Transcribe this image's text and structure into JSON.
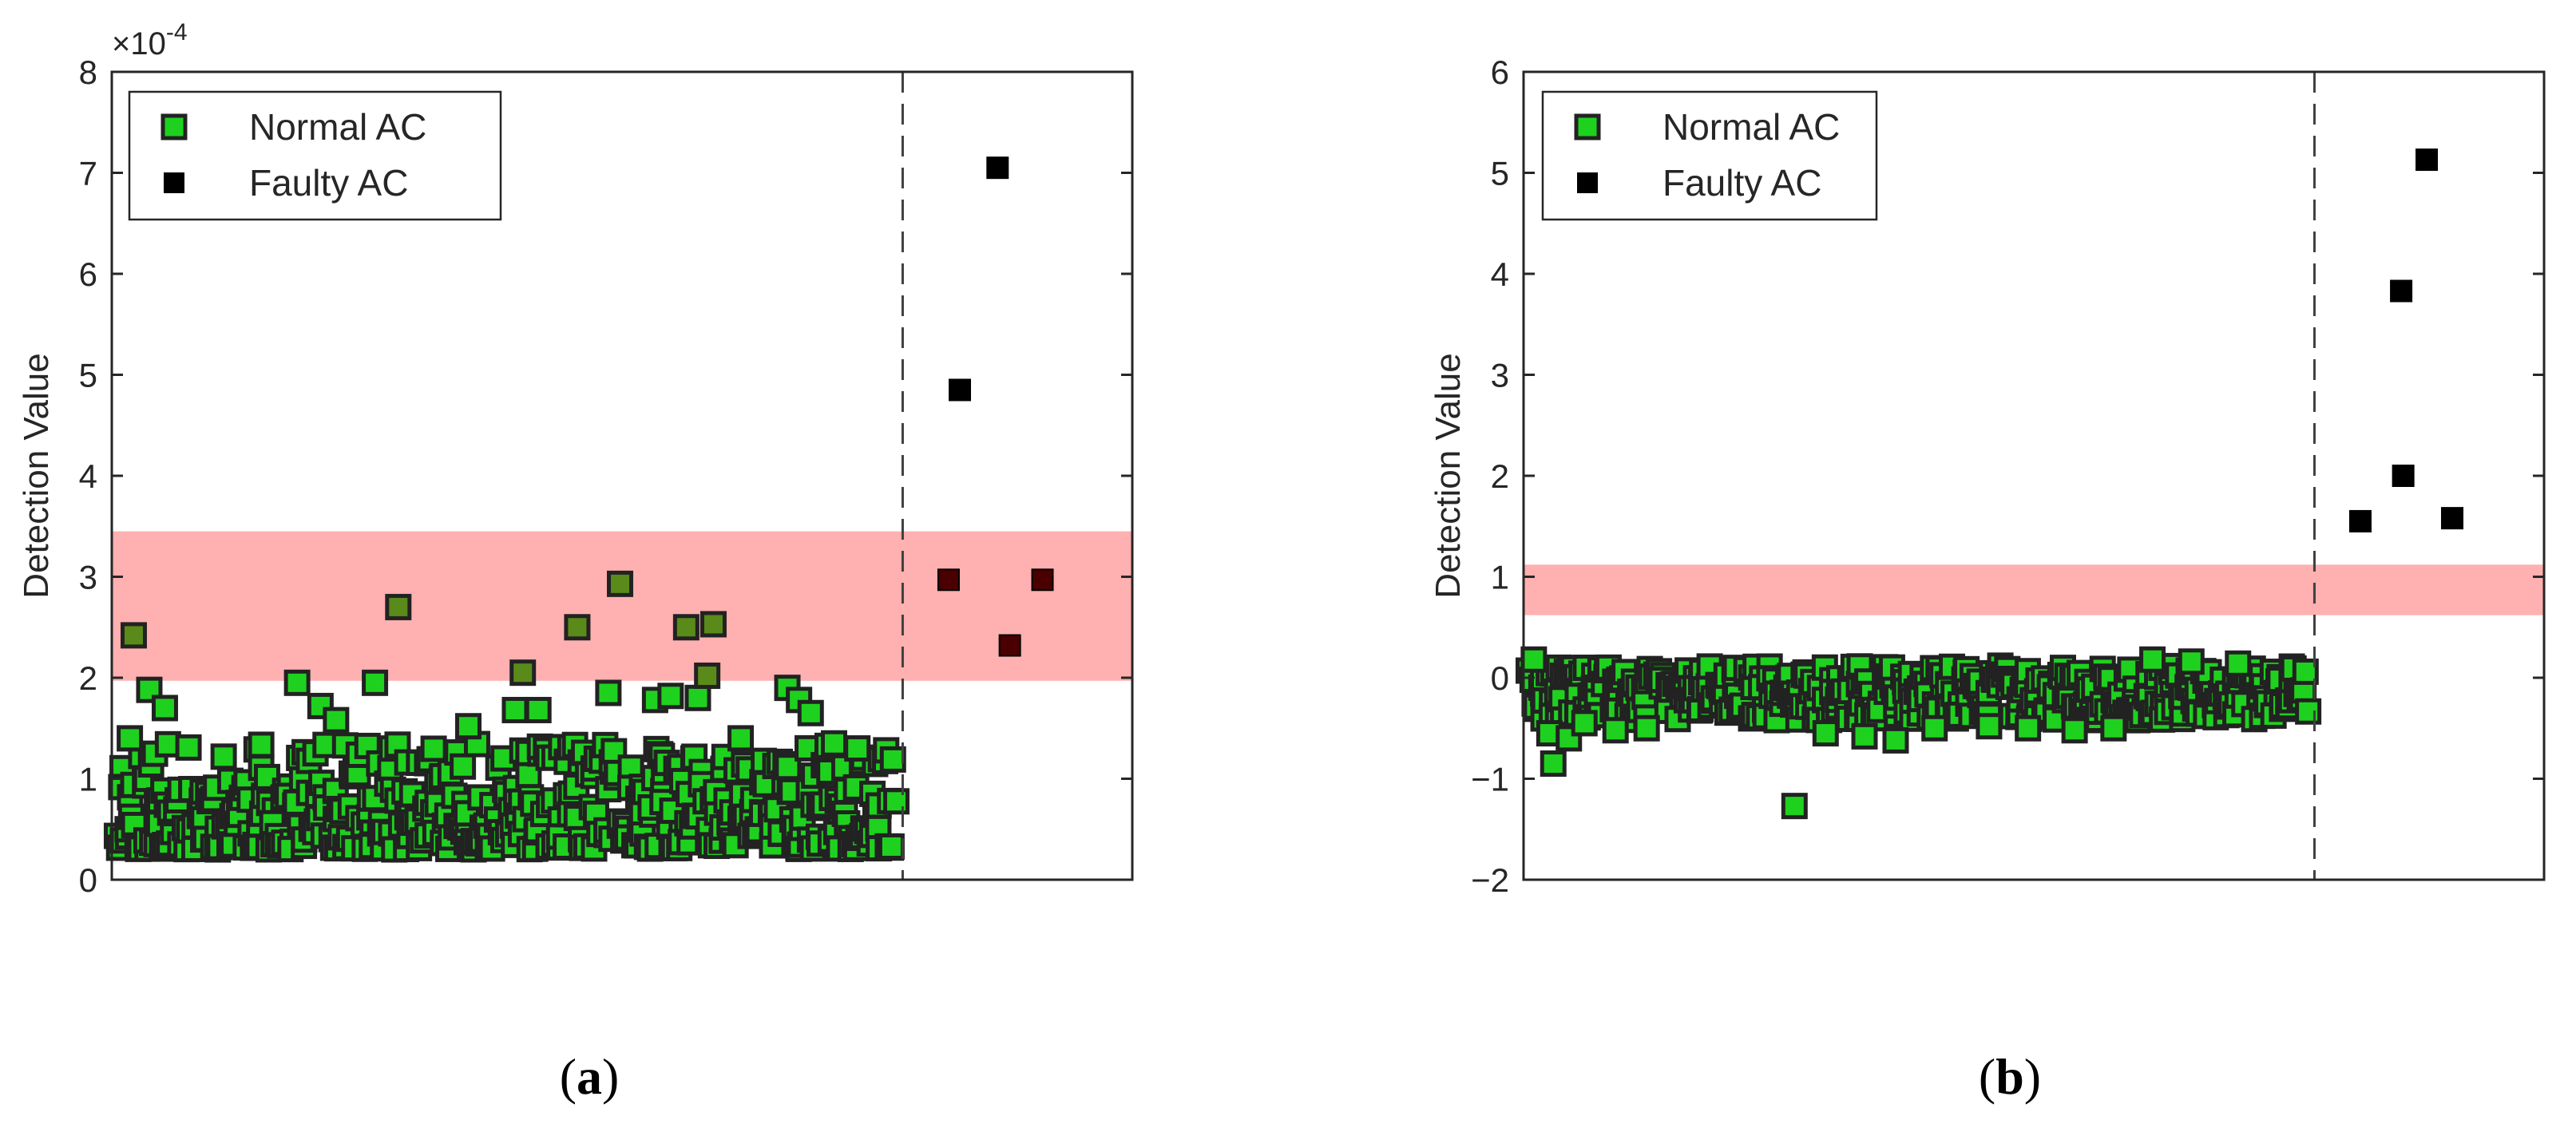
{
  "colors": {
    "normal_fill": "#1fd11f",
    "normal_edge": "#222222",
    "faulty_fill": "#000000",
    "threshold_band": "#ffb0b0",
    "axis": "#262626",
    "dashed_line": "#404040"
  },
  "chart_data": [
    {
      "id": "a",
      "type": "scatter",
      "caption": {
        "open": "(",
        "letter": "a",
        "close": ")"
      },
      "title": "",
      "xlabel": "",
      "ylabel": "Detection Value",
      "ylim": [
        0,
        8
      ],
      "y_ticks": [
        0,
        1,
        2,
        3,
        4,
        5,
        6,
        7,
        8
      ],
      "y_tick_labels": [
        "0",
        "1",
        "2",
        "3",
        "4",
        "5",
        "6",
        "7",
        "8"
      ],
      "exponent": {
        "base": "×10",
        "power": "-4"
      },
      "grid": false,
      "legend": {
        "position": "top-left",
        "entries": [
          "Normal AC",
          "Faulty AC"
        ]
      },
      "divider_fraction": 0.775,
      "threshold_band": [
        1.97,
        3.45
      ],
      "normal_ac": {
        "label": "Normal AC",
        "count": 460,
        "value_range": [
          0.3,
          1.35
        ],
        "seed": 11,
        "outliers": [
          {
            "i": 0.02,
            "v": 2.42
          },
          {
            "i": 0.04,
            "v": 1.88
          },
          {
            "i": 0.06,
            "v": 1.7
          },
          {
            "i": 0.23,
            "v": 1.95
          },
          {
            "i": 0.26,
            "v": 1.72
          },
          {
            "i": 0.28,
            "v": 1.58
          },
          {
            "i": 0.33,
            "v": 1.95
          },
          {
            "i": 0.36,
            "v": 2.7
          },
          {
            "i": 0.45,
            "v": 1.52
          },
          {
            "i": 0.51,
            "v": 1.68
          },
          {
            "i": 0.52,
            "v": 2.05
          },
          {
            "i": 0.54,
            "v": 1.68
          },
          {
            "i": 0.59,
            "v": 2.5
          },
          {
            "i": 0.63,
            "v": 1.85
          },
          {
            "i": 0.645,
            "v": 2.93
          },
          {
            "i": 0.69,
            "v": 1.78
          },
          {
            "i": 0.71,
            "v": 1.82
          },
          {
            "i": 0.73,
            "v": 2.5
          },
          {
            "i": 0.745,
            "v": 1.8
          },
          {
            "i": 0.757,
            "v": 2.02
          },
          {
            "i": 0.765,
            "v": 2.53
          },
          {
            "i": 0.8,
            "v": 1.4
          },
          {
            "i": 0.86,
            "v": 1.9
          },
          {
            "i": 0.875,
            "v": 1.78
          },
          {
            "i": 0.89,
            "v": 1.65
          },
          {
            "i": 0.92,
            "v": 1.35
          },
          {
            "i": 0.015,
            "v": 1.4
          },
          {
            "i": 0.95,
            "v": 1.3
          }
        ]
      },
      "faulty_ac": {
        "label": "Faulty AC",
        "points": [
          {
            "x": 0.82,
            "y": 2.97
          },
          {
            "x": 0.831,
            "y": 4.85
          },
          {
            "x": 0.868,
            "y": 7.05
          },
          {
            "x": 0.88,
            "y": 2.32
          },
          {
            "x": 0.912,
            "y": 2.97
          }
        ]
      }
    },
    {
      "id": "b",
      "type": "scatter",
      "caption": {
        "open": "(",
        "letter": "b",
        "close": ")"
      },
      "title": "",
      "xlabel": "",
      "ylabel": "Detection Value",
      "ylim": [
        -2,
        6
      ],
      "y_ticks": [
        -2,
        -1,
        0,
        1,
        2,
        3,
        4,
        5,
        6
      ],
      "y_tick_labels": [
        "−2",
        "−1",
        "0",
        "1",
        "2",
        "3",
        "4",
        "5",
        "6"
      ],
      "grid": false,
      "legend": {
        "position": "top-left",
        "entries": [
          "Normal AC",
          "Faulty AC"
        ]
      },
      "divider_fraction": 0.775,
      "threshold_band": [
        0.62,
        1.12
      ],
      "normal_ac": {
        "label": "Normal AC",
        "count": 420,
        "value_range": [
          -0.42,
          0.12
        ],
        "seed": 29,
        "outliers": [
          {
            "i": 0.005,
            "v": 0.18
          },
          {
            "i": 0.03,
            "v": -0.85
          },
          {
            "i": 0.025,
            "v": -0.55
          },
          {
            "i": 0.05,
            "v": -0.6
          },
          {
            "i": 0.07,
            "v": -0.45
          },
          {
            "i": 0.11,
            "v": -0.52
          },
          {
            "i": 0.15,
            "v": -0.5
          },
          {
            "i": 0.34,
            "v": -1.27
          },
          {
            "i": 0.38,
            "v": -0.55
          },
          {
            "i": 0.43,
            "v": -0.58
          },
          {
            "i": 0.47,
            "v": -0.62
          },
          {
            "i": 0.52,
            "v": -0.5
          },
          {
            "i": 0.59,
            "v": -0.48
          },
          {
            "i": 0.64,
            "v": -0.5
          },
          {
            "i": 0.7,
            "v": -0.52
          },
          {
            "i": 0.75,
            "v": -0.5
          },
          {
            "i": 0.85,
            "v": 0.16
          },
          {
            "i": 0.8,
            "v": 0.18
          },
          {
            "i": 0.91,
            "v": 0.14
          }
        ]
      },
      "faulty_ac": {
        "label": "Faulty AC",
        "points": [
          {
            "x": 0.82,
            "y": 1.55
          },
          {
            "x": 0.86,
            "y": 3.83
          },
          {
            "x": 0.862,
            "y": 2.0
          },
          {
            "x": 0.885,
            "y": 5.13
          },
          {
            "x": 0.91,
            "y": 1.58
          }
        ]
      }
    }
  ]
}
